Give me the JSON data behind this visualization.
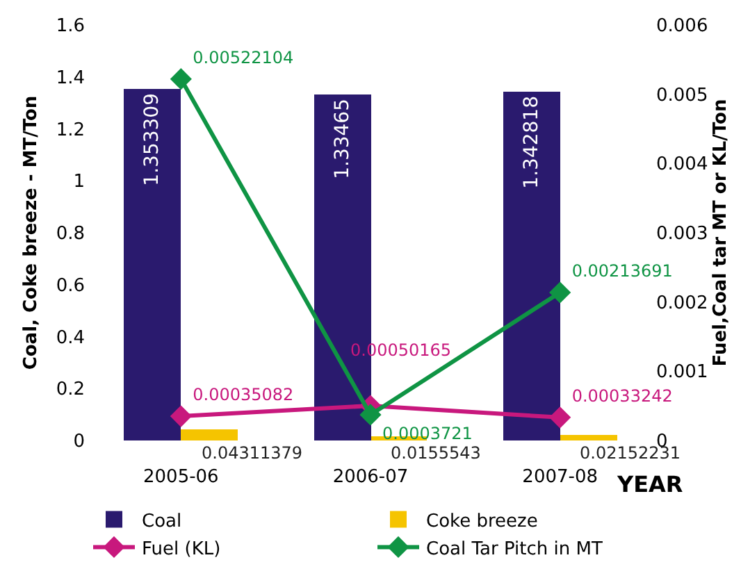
{
  "chart_data": {
    "type": "bar",
    "categories": [
      "2005-06",
      "2006-07",
      "2007-08"
    ],
    "xlabel": "YEAR",
    "ylabel": "Coal, Coke breeze - MT/Ton",
    "y2label": "Fuel,Coal tar MT or KL/Ton",
    "ylim": [
      0,
      1.6
    ],
    "yticks": [
      0,
      0.2,
      0.4,
      0.6,
      0.8,
      1,
      1.2,
      1.4,
      1.6
    ],
    "y2lim": [
      0,
      0.006
    ],
    "y2ticks": [
      0,
      0.001,
      0.002,
      0.003,
      0.004,
      0.005,
      0.006
    ],
    "series": [
      {
        "name": "Coal",
        "color": "#2a1a6e",
        "values": [
          1.353309,
          1.33465,
          1.342818
        ]
      },
      {
        "name": "Coke breeze",
        "color": "#f5c400",
        "values": [
          0.04311379,
          0.0155543,
          0.02152231
        ]
      },
      {
        "name": "Fuel (KL)",
        "type": "line",
        "axis": "y2",
        "color": "#c8187d",
        "values": [
          0.00035082,
          0.00050165,
          0.00033242
        ]
      },
      {
        "name": "Coal Tar Pitch in MT",
        "type": "line",
        "axis": "y2",
        "color": "#0f9444",
        "values": [
          0.00522104,
          0.0003721,
          0.00213691
        ]
      }
    ],
    "data_labels": true,
    "marker": "diamond",
    "grid": false,
    "legend": "bottom"
  }
}
